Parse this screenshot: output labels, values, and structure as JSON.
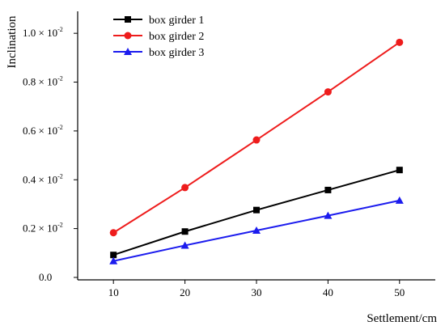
{
  "chart_data": {
    "type": "line",
    "xlabel": "Settlement/cm",
    "ylabel": "Inclination",
    "x": [
      10,
      20,
      30,
      40,
      50
    ],
    "xlim": [
      5,
      55
    ],
    "ylim": [
      -0.0001,
      0.0109
    ],
    "xticks": [
      10,
      20,
      30,
      40,
      50
    ],
    "yticks": [
      {
        "value": 0.0,
        "label": "0.0",
        "sup": ""
      },
      {
        "value": 0.002,
        "label": "0.2 × 10",
        "sup": "-2"
      },
      {
        "value": 0.004,
        "label": "0.4 × 10",
        "sup": "-2"
      },
      {
        "value": 0.006,
        "label": "0.6 × 10",
        "sup": "-2"
      },
      {
        "value": 0.008,
        "label": "0.8 × 10",
        "sup": "-2"
      },
      {
        "value": 0.01,
        "label": "1.0 × 10",
        "sup": "-2"
      }
    ],
    "grid": false,
    "legend_position": "top-left",
    "series": [
      {
        "name": "box girder 1",
        "color": "#000000",
        "marker": "square",
        "values": [
          0.00092,
          0.00188,
          0.00276,
          0.00358,
          0.0044
        ]
      },
      {
        "name": "box girder 2",
        "color": "#ee1c1c",
        "marker": "circle",
        "values": [
          0.00183,
          0.00368,
          0.00563,
          0.0076,
          0.00963
        ]
      },
      {
        "name": "box girder 3",
        "color": "#1c1cee",
        "marker": "triangle",
        "values": [
          0.00067,
          0.00131,
          0.00192,
          0.00253,
          0.00315
        ]
      }
    ]
  }
}
